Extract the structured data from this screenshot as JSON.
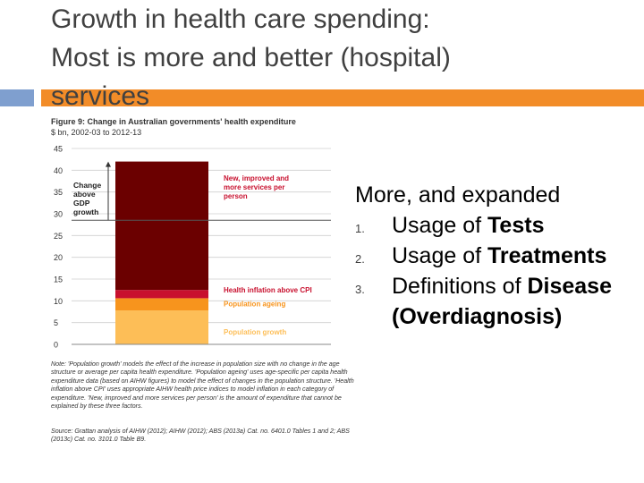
{
  "slide": {
    "title": "Growth in health care spending:\nMost is more and better (hospital)\nservices",
    "colors": {
      "accent_blue": "#7f9fcf",
      "accent_orange": "#f28c28"
    }
  },
  "figure": {
    "title": "Figure 9: Change in Australian governments' health expenditure",
    "subtitle": "$ bn, 2002-03 to 2012-13",
    "note": "Note: 'Population growth' models the effect of the increase in population size with no change in the age structure or average per capita health expenditure. 'Population ageing' uses age-specific per capita health expenditure data (based on AIHW figures) to model the effect of changes in the population structure. 'Health inflation above CPI' uses appropriate AIHW health price indices to model inflation in each category of expenditure. 'New, improved and more services per person' is the amount of expenditure that cannot be explained by these three factors.",
    "source": "Source: Grattan analysis of AIHW (2012); AIHW (2012); ABS (2013a) Cat. no. 6401.0 Tables 1 and 2; ABS (2013c) Cat. no. 3101.0 Table B9."
  },
  "chart_data": {
    "type": "bar",
    "stacked": true,
    "y_ticks": [
      0,
      5,
      10,
      15,
      20,
      25,
      30,
      35,
      40,
      45
    ],
    "ylim": [
      0,
      45
    ],
    "series": [
      {
        "name": "Population growth",
        "value": 7.8,
        "color": "#fdbe57"
      },
      {
        "name": "Population ageing",
        "value": 2.8,
        "color": "#f7941d"
      },
      {
        "name": "Health inflation above CPI",
        "value": 1.9,
        "color": "#c8102e"
      },
      {
        "name": "New, improved and more services per person",
        "value": 29.5,
        "color": "#6b0000"
      }
    ],
    "reference_line": {
      "value": 28.5
    },
    "annotation": {
      "label": "Change above GDP growth",
      "from": 28.5,
      "to": 42.0
    }
  },
  "bullets": {
    "heading": "More, and expanded",
    "items": [
      {
        "num": "1.",
        "text": "Usage of ",
        "bold": "Tests"
      },
      {
        "num": "2.",
        "text": "Usage of ",
        "bold": "Treatments"
      },
      {
        "num": "3.",
        "text": "Definitions of ",
        "bold": "Disease (Overdiagnosis)"
      }
    ]
  }
}
